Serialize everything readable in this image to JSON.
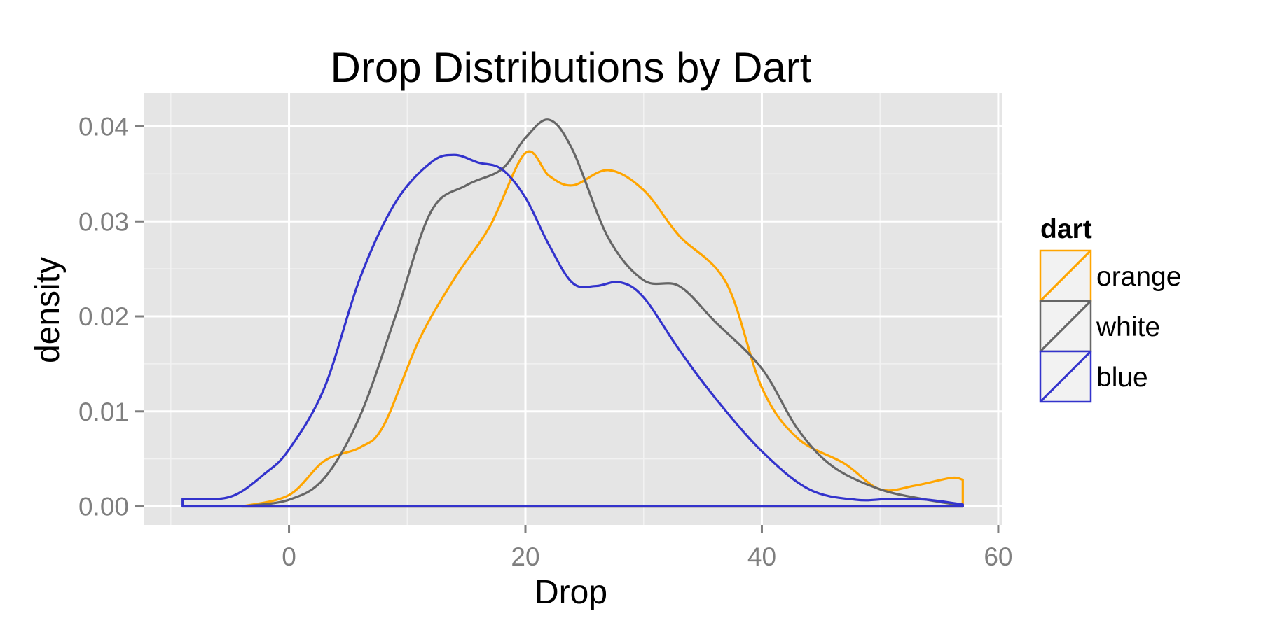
{
  "chart_data": {
    "type": "area",
    "title": "Drop Distributions by Dart",
    "xlabel": "Drop",
    "ylabel": "density",
    "xlim": [
      -12.3,
      60.3
    ],
    "ylim": [
      -0.00195,
      0.0435
    ],
    "x_ticks": [
      0,
      20,
      40,
      60
    ],
    "x_tick_labels": [
      "0",
      "20",
      "40",
      "60"
    ],
    "y_ticks": [
      0,
      0.01,
      0.02,
      0.03,
      0.04
    ],
    "y_tick_labels": [
      "0.00",
      "0.01",
      "0.02",
      "0.03",
      "0.04"
    ],
    "grid": true,
    "legend": {
      "title": "dart",
      "position": "right"
    },
    "series": [
      {
        "name": "orange",
        "color": "#ffa500",
        "x": [
          -4,
          0,
          3,
          6,
          8,
          11,
          14,
          17,
          20,
          22,
          24,
          27,
          30,
          33,
          37,
          40,
          43,
          47,
          50,
          53,
          56,
          57
        ],
        "y": [
          0.0,
          0.0012,
          0.0048,
          0.0062,
          0.0085,
          0.0175,
          0.024,
          0.0295,
          0.0372,
          0.0348,
          0.0338,
          0.0354,
          0.0333,
          0.0285,
          0.0235,
          0.0125,
          0.0072,
          0.0045,
          0.0018,
          0.0022,
          0.003,
          0.0028
        ]
      },
      {
        "name": "white",
        "color": "#666666",
        "x": [
          -4,
          0,
          3,
          6,
          9,
          12,
          15,
          18,
          20,
          22,
          24,
          27,
          30,
          33,
          36,
          40,
          43,
          46,
          50,
          54,
          57
        ],
        "y": [
          0.0,
          0.0007,
          0.003,
          0.0095,
          0.02,
          0.031,
          0.0338,
          0.0355,
          0.0388,
          0.0407,
          0.0375,
          0.0283,
          0.0238,
          0.0232,
          0.0195,
          0.0145,
          0.0082,
          0.0042,
          0.0018,
          0.0007,
          0.0001
        ]
      },
      {
        "name": "blue",
        "color": "#3333cc",
        "x": [
          -9,
          -5,
          -2,
          0,
          3,
          6,
          9,
          12,
          14,
          16,
          18,
          20,
          22,
          24,
          26,
          28,
          30,
          33,
          36,
          40,
          44,
          48,
          51,
          54,
          57
        ],
        "y": [
          0.0008,
          0.001,
          0.0035,
          0.006,
          0.0125,
          0.024,
          0.032,
          0.0362,
          0.037,
          0.0362,
          0.0355,
          0.0325,
          0.0275,
          0.0235,
          0.0232,
          0.0236,
          0.022,
          0.0165,
          0.0115,
          0.0058,
          0.0018,
          0.0007,
          0.0008,
          0.0007,
          0.0002
        ]
      }
    ]
  }
}
